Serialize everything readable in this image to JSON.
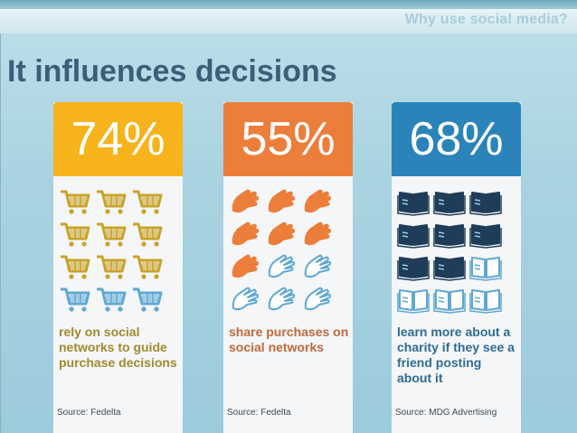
{
  "header": {
    "title": "Why use social media?"
  },
  "main_title": "It influences decisions",
  "colors": {
    "cart_filled": "#c9a227",
    "cart_empty": "#5fa8d3",
    "hand_filled": "#ec7e3b",
    "hand_empty": "#5fa8d3",
    "book_filled": "#1f3c58",
    "book_empty": "#5fa8d3"
  },
  "cards": [
    {
      "stat": "74%",
      "icon": "shopping-cart-icon",
      "filled_of_12": 9,
      "description": "rely on social networks to guide purchase decisions",
      "source": "Source: Fedelta"
    },
    {
      "stat": "55%",
      "icon": "hand-icon",
      "filled_of_12": 7,
      "description": "share purchases on social networks",
      "source": "Source: Fedelta"
    },
    {
      "stat": "68%",
      "icon": "open-book-icon",
      "filled_of_12": 8,
      "description": "learn more about a charity if they see a friend posting about it",
      "source": "Source: MDG Advertising"
    }
  ]
}
